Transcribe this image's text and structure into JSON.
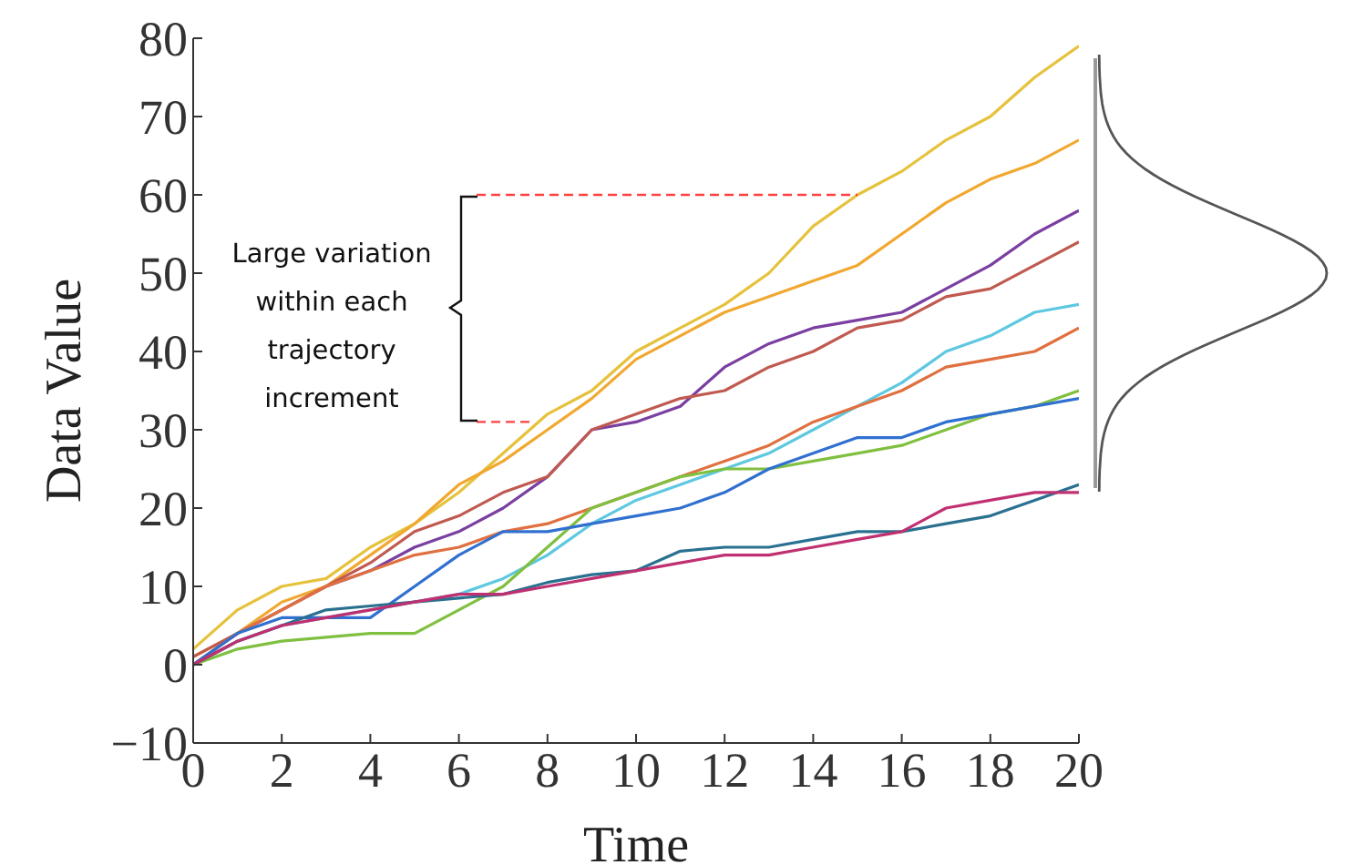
{
  "chart_data": {
    "type": "line",
    "xlabel": "Time",
    "ylabel": "Data Value",
    "x": [
      0,
      1,
      2,
      3,
      4,
      5,
      6,
      7,
      8,
      9,
      10,
      11,
      12,
      13,
      14,
      15,
      16,
      17,
      18,
      19,
      20
    ],
    "xlim": [
      0,
      20
    ],
    "xticks": [
      0,
      2,
      4,
      6,
      8,
      10,
      12,
      14,
      16,
      18,
      20
    ],
    "ylim": [
      -10,
      80
    ],
    "yticks": [
      {
        "value": -10,
        "label": "−10"
      },
      0,
      10,
      20,
      30,
      40,
      50,
      60,
      70,
      80
    ],
    "grid": false,
    "legend": false,
    "marker": "none",
    "line_style": "solid",
    "annotations": [
      "Large variation within each trajectory increment"
    ],
    "series": [
      {
        "color": "#e6c23c",
        "values": [
          2,
          7,
          10,
          11,
          15,
          18,
          22,
          27,
          32,
          35,
          40,
          43,
          46,
          50,
          56,
          60,
          63,
          67,
          70,
          75,
          79
        ]
      },
      {
        "color": "#f0a830",
        "values": [
          1,
          4,
          8,
          10,
          14,
          18,
          23,
          26,
          30,
          34,
          39,
          42,
          45,
          47,
          49,
          51,
          55,
          59,
          62,
          64,
          67
        ]
      },
      {
        "color": "#7a3fa0",
        "values": [
          0,
          4,
          7,
          10,
          12,
          15,
          17,
          20,
          24,
          30,
          31,
          33,
          38,
          41,
          43,
          44,
          45,
          48,
          51,
          55,
          58
        ]
      },
      {
        "color": "#c05a50",
        "values": [
          1,
          4,
          7,
          10,
          13,
          17,
          19,
          22,
          24,
          30,
          32,
          34,
          35,
          38,
          40,
          43,
          44,
          47,
          48,
          51,
          54
        ]
      },
      {
        "color": "#5ec8e0",
        "values": [
          0,
          3,
          5,
          6,
          7,
          8,
          9,
          11,
          14,
          18,
          21,
          23,
          25,
          27,
          30,
          33,
          36,
          40,
          42,
          45,
          46
        ]
      },
      {
        "color": "#e07040",
        "values": [
          0,
          4,
          7,
          10,
          12,
          14,
          15,
          17,
          18,
          20,
          22,
          24,
          26,
          28,
          31,
          33,
          35,
          38,
          39,
          40,
          43
        ]
      },
      {
        "color": "#80c040",
        "values": [
          0,
          2,
          3,
          3.5,
          4,
          4,
          7,
          10,
          15,
          20,
          22,
          24,
          25,
          25,
          26,
          27,
          28,
          30,
          32,
          33,
          35
        ]
      },
      {
        "color": "#3070d0",
        "values": [
          0,
          4,
          6,
          6,
          6,
          10,
          14,
          17,
          17,
          18,
          19,
          20,
          22,
          25,
          27,
          29,
          29,
          31,
          32,
          33,
          34
        ]
      },
      {
        "color": "#2a7090",
        "values": [
          0,
          3,
          5,
          7,
          7.5,
          8,
          8.5,
          9,
          10.5,
          11.5,
          12,
          14.5,
          15,
          15,
          16,
          17,
          17,
          18,
          19,
          21,
          23
        ]
      },
      {
        "color": "#c03070",
        "values": [
          0,
          3,
          5,
          6,
          7,
          8,
          9,
          9,
          10,
          11,
          12,
          13,
          14,
          14,
          15,
          16,
          17,
          20,
          21,
          22,
          22
        ]
      },
      {
        "type": "line",
        "line_style": "dashed",
        "color": "#ff4040",
        "x": [
          6.4,
          15
        ],
        "values": [
          60,
          60
        ]
      },
      {
        "type": "line",
        "line_style": "dashed",
        "color": "#ff4040",
        "x": [
          6.4,
          7.6
        ],
        "values": [
          31,
          31
        ]
      }
    ]
  }
}
